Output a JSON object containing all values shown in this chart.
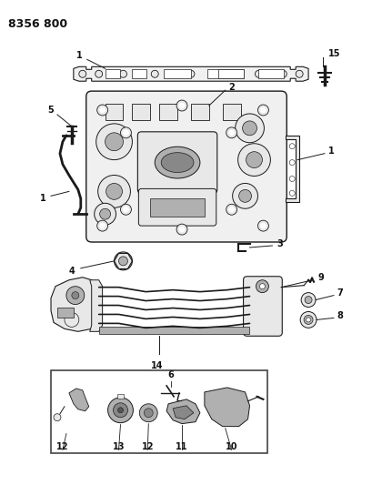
{
  "title": "8356 800",
  "bg": "#ffffff",
  "lc": "#1a1a1a",
  "tc": "#111111",
  "fig_w": 4.1,
  "fig_h": 5.33,
  "dpi": 100,
  "gray1": "#d0d0d0",
  "gray2": "#b0b0b0",
  "gray3": "#888888",
  "gray4": "#e8e8e8",
  "gray5": "#f0f0f0"
}
